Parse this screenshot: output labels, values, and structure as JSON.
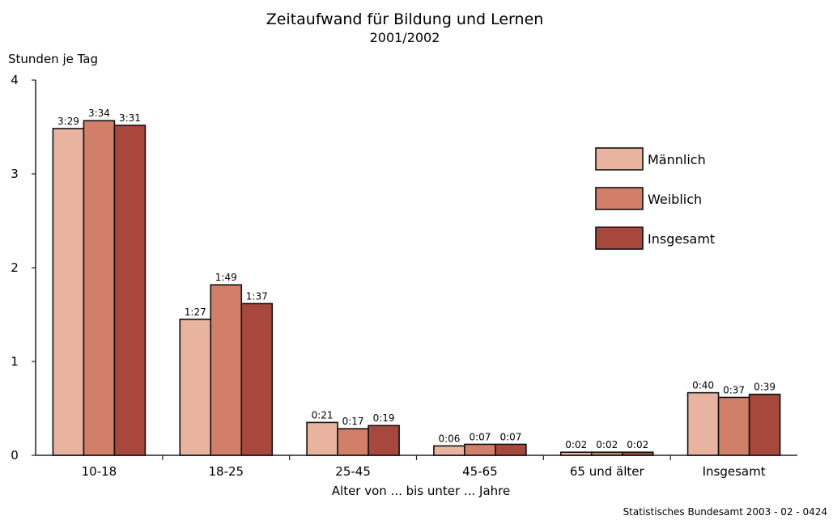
{
  "chart_data": {
    "type": "bar",
    "title": "Zeitaufwand  für Bildung und Lernen",
    "subtitle": "2001/2002",
    "ylabel": "Stunden je Tag",
    "xlabel": "Alter von ... bis unter ... Jahre",
    "ylim": [
      0,
      4
    ],
    "yticks": [
      "0",
      "1",
      "2",
      "3",
      "4"
    ],
    "categories": [
      "10-18",
      "18-25",
      "25-45",
      "45-65",
      "65 und älter",
      "Insgesamt"
    ],
    "series": [
      {
        "name": "Männlich",
        "color": "#e8b4a0",
        "values": [
          3.483,
          1.45,
          0.35,
          0.1,
          0.033,
          0.667
        ],
        "labels": [
          "3:29",
          "1:27",
          "0:21",
          "0:06",
          "0:02",
          "0:40"
        ]
      },
      {
        "name": "Weiblich",
        "color": "#d27f6a",
        "values": [
          3.567,
          1.817,
          0.283,
          0.117,
          0.033,
          0.617
        ],
        "labels": [
          "3:34",
          "1:49",
          "0:17",
          "0:07",
          "0:02",
          "0:37"
        ]
      },
      {
        "name": "Insgesamt",
        "color": "#a8473c",
        "values": [
          3.517,
          1.617,
          0.317,
          0.117,
          0.033,
          0.65
        ],
        "labels": [
          "3:31",
          "1:37",
          "0:19",
          "0:07",
          "0:02",
          "0:39"
        ]
      }
    ],
    "legend_position": "top-right",
    "grid": false
  },
  "source_note": "Statistisches Bundesamt 2003 - 02 - 0424"
}
